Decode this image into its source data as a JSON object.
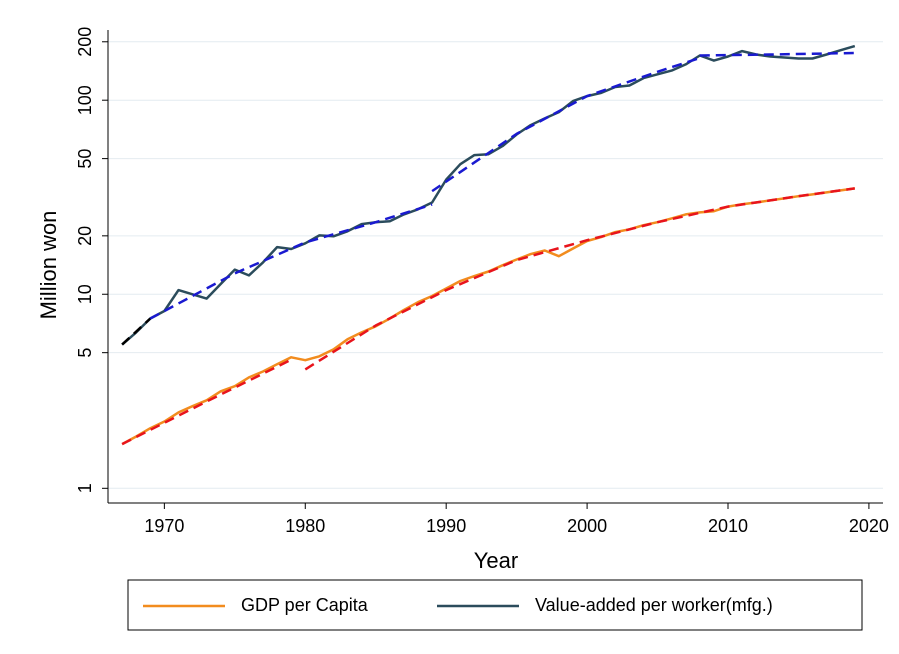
{
  "chart_data": {
    "type": "line",
    "x_label": "Year",
    "y_label": "Million won",
    "log_y": true,
    "grid": true,
    "xlim": [
      1966,
      2021
    ],
    "xticks": [
      1970,
      1980,
      1990,
      2000,
      2010,
      2020
    ],
    "ylim": [
      0.84,
      230
    ],
    "yticks": [
      1,
      5,
      10,
      20,
      50,
      100,
      200
    ],
    "series": [
      {
        "name": "GDP per Capita",
        "color": "#f28c1e",
        "x": [
          1967,
          1968,
          1969,
          1970,
          1971,
          1972,
          1973,
          1974,
          1975,
          1976,
          1977,
          1978,
          1979,
          1980,
          1981,
          1982,
          1983,
          1984,
          1985,
          1986,
          1987,
          1988,
          1989,
          1990,
          1991,
          1992,
          1993,
          1994,
          1995,
          1996,
          1997,
          1998,
          1999,
          2000,
          2001,
          2002,
          2003,
          2004,
          2005,
          2006,
          2007,
          2008,
          2009,
          2010,
          2011,
          2012,
          2013,
          2014,
          2015,
          2016,
          2017,
          2018,
          2019
        ],
        "values": [
          1.69,
          1.85,
          2.04,
          2.21,
          2.46,
          2.65,
          2.84,
          3.16,
          3.36,
          3.73,
          4.0,
          4.36,
          4.73,
          4.57,
          4.79,
          5.2,
          5.86,
          6.36,
          6.84,
          7.5,
          8.3,
          9.1,
          9.8,
          10.7,
          11.7,
          12.4,
          13.1,
          14.1,
          15.1,
          16.1,
          16.8,
          15.7,
          17.2,
          18.8,
          19.7,
          20.9,
          21.6,
          22.7,
          23.5,
          24.6,
          25.8,
          26.4,
          26.8,
          28.3,
          29.1,
          29.7,
          30.5,
          31.2,
          32.0,
          32.7,
          33.5,
          34.3,
          35.1
        ]
      },
      {
        "name": "Value-added per worker(mfg.)",
        "color": "#2b4c5c",
        "x": [
          1967,
          1968,
          1969,
          1970,
          1971,
          1972,
          1973,
          1974,
          1975,
          1976,
          1977,
          1978,
          1979,
          1980,
          1981,
          1982,
          1983,
          1984,
          1985,
          1986,
          1987,
          1988,
          1989,
          1990,
          1991,
          1992,
          1993,
          1994,
          1995,
          1996,
          1997,
          1998,
          1999,
          2000,
          2001,
          2002,
          2003,
          2004,
          2005,
          2006,
          2007,
          2008,
          2009,
          2010,
          2011,
          2012,
          2013,
          2014,
          2015,
          2016,
          2017,
          2018,
          2019
        ],
        "values": [
          5.5,
          6.36,
          7.5,
          8.2,
          10.5,
          10.0,
          9.5,
          11.3,
          13.4,
          12.5,
          14.6,
          17.5,
          17.1,
          18.3,
          20.1,
          19.9,
          21.1,
          23.0,
          23.5,
          23.8,
          25.8,
          27.4,
          29.7,
          39.0,
          46.8,
          52.1,
          52.7,
          58.0,
          66.6,
          74.4,
          80.6,
          86.8,
          98.9,
          105,
          109,
          117,
          119,
          130,
          136,
          142,
          153,
          170,
          160,
          168,
          179,
          172,
          168,
          166,
          164,
          164,
          172,
          181,
          190
        ]
      },
      {
        "color": "#e8141c",
        "dash": true,
        "x": [
          1967,
          1973,
          1979
        ],
        "values": [
          1.69,
          2.8,
          4.6
        ]
      },
      {
        "color": "#e8141c",
        "dash": true,
        "x": [
          1980,
          1985,
          1990,
          1995,
          2000,
          2005,
          2010,
          2015,
          2019
        ],
        "values": [
          4.1,
          6.9,
          10.5,
          15.0,
          19.0,
          23.5,
          28.3,
          32.0,
          35.1
        ]
      },
      {
        "color": "#000000",
        "dash": true,
        "x": [
          1967,
          1969
        ],
        "values": [
          5.5,
          7.5
        ]
      },
      {
        "color": "#1a1ad0",
        "dash": true,
        "x": [
          1969,
          1975,
          1980,
          1985,
          1989
        ],
        "values": [
          7.5,
          12.8,
          18.5,
          23.5,
          29
        ]
      },
      {
        "color": "#1a1ad0",
        "dash": true,
        "x": [
          1989,
          1995,
          2000,
          2005,
          2008
        ],
        "values": [
          34,
          67,
          105,
          140,
          165
        ]
      },
      {
        "color": "#1a1ad0",
        "dash": true,
        "x": [
          2008,
          2013,
          2019
        ],
        "values": [
          170,
          172,
          175
        ]
      }
    ]
  }
}
